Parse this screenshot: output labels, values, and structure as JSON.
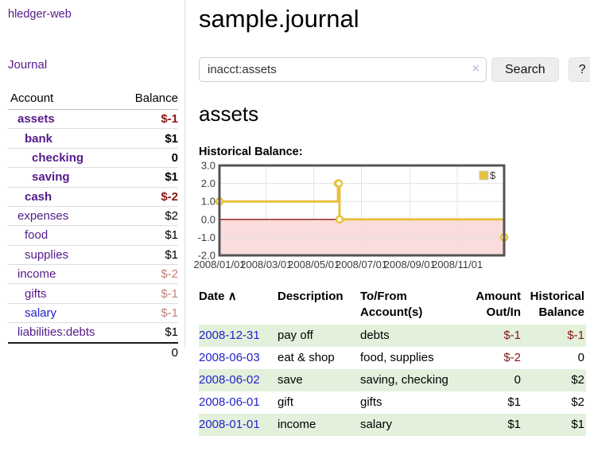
{
  "app": {
    "brand": "hledger-web",
    "journal_link": "Journal"
  },
  "sidebar": {
    "header": {
      "account": "Account",
      "balance": "Balance"
    },
    "accounts": [
      {
        "name": "assets",
        "indent": 1,
        "bold": true,
        "link_color": "purple",
        "balance": "$-1",
        "balance_color": "neg-dark"
      },
      {
        "name": "bank",
        "indent": 2,
        "bold": true,
        "link_color": "purple",
        "balance": "$1",
        "balance_color": "black"
      },
      {
        "name": "checking",
        "indent": 3,
        "bold": true,
        "link_color": "purple",
        "balance": "0",
        "balance_color": "black"
      },
      {
        "name": "saving",
        "indent": 3,
        "bold": true,
        "link_color": "purple",
        "balance": "$1",
        "balance_color": "black"
      },
      {
        "name": "cash",
        "indent": 2,
        "bold": true,
        "link_color": "purple",
        "balance": "$-2",
        "balance_color": "neg-dark"
      },
      {
        "name": "expenses",
        "indent": 1,
        "bold": false,
        "link_color": "purple",
        "balance": "$2",
        "balance_color": "black"
      },
      {
        "name": "food",
        "indent": 2,
        "bold": false,
        "link_color": "purple",
        "balance": "$1",
        "balance_color": "black"
      },
      {
        "name": "supplies",
        "indent": 2,
        "bold": false,
        "link_color": "purple",
        "balance": "$1",
        "balance_color": "black"
      },
      {
        "name": "income",
        "indent": 1,
        "bold": false,
        "link_color": "purple",
        "balance": "$-2",
        "balance_color": "neg-rose"
      },
      {
        "name": "gifts",
        "indent": 2,
        "bold": false,
        "link_color": "purple",
        "balance": "$-1",
        "balance_color": "neg-rose"
      },
      {
        "name": "salary",
        "indent": 2,
        "bold": false,
        "link_color": "blue",
        "balance": "$-1",
        "balance_color": "neg-rose"
      },
      {
        "name": "liabilities:debts",
        "indent": 1,
        "bold": false,
        "link_color": "purple",
        "balance": "$1",
        "balance_color": "black"
      }
    ],
    "total": "0"
  },
  "header": {
    "title": "sample.journal"
  },
  "search": {
    "value": "inacct:assets",
    "clear_icon": "×",
    "button_label": "Search",
    "help_label": "?"
  },
  "account_page": {
    "heading": "assets",
    "chart_title": "Historical Balance:"
  },
  "chart_data": {
    "type": "line",
    "style": "step",
    "title": "Historical Balance:",
    "series": [
      {
        "name": "$",
        "color": "#e8c13d",
        "points": [
          [
            "2008-01-01",
            1
          ],
          [
            "2008-06-01",
            2
          ],
          [
            "2008-06-02",
            2
          ],
          [
            "2008-06-03",
            0
          ],
          [
            "2008-12-31",
            -1
          ]
        ]
      }
    ],
    "xlim": [
      "2008-01-01",
      "2008-12-31"
    ],
    "ylim": [
      -2,
      3
    ],
    "x_ticks": [
      "2008/01/01",
      "2008/03/01",
      "2008/05/01",
      "2008/07/01",
      "2008/09/01",
      "2008/11/01"
    ],
    "y_ticks": [
      "3.0",
      "2.0",
      "1.0",
      "0.0",
      "-1.0",
      "-2.0"
    ],
    "grid": true,
    "legend": {
      "position": "top-right",
      "label": "$"
    },
    "colors": {
      "negative_region": "#fbdcdc",
      "zero_line": "#8f1414",
      "gridline": "#e3e3e3",
      "border": "#545454",
      "tick_text": "#3c3c3c"
    }
  },
  "register": {
    "headers": {
      "date": "Date",
      "sort_icon": "∧",
      "description": "Description",
      "accounts": "To/From Account(s)",
      "amount": "Amount Out/In",
      "balance": "Historical Balance"
    },
    "rows": [
      {
        "date": "2008-12-31",
        "description": "pay off",
        "accounts": "debts",
        "amount": "$-1",
        "amount_neg": true,
        "balance": "$-1",
        "balance_neg": true,
        "shaded": true
      },
      {
        "date": "2008-06-03",
        "description": "eat & shop",
        "accounts": "food, supplies",
        "amount": "$-2",
        "amount_neg": true,
        "balance": "0",
        "balance_neg": false,
        "shaded": false
      },
      {
        "date": "2008-06-02",
        "description": "save",
        "accounts": "saving, checking",
        "amount": "0",
        "amount_neg": false,
        "balance": "$2",
        "balance_neg": false,
        "shaded": true
      },
      {
        "date": "2008-06-01",
        "description": "gift",
        "accounts": "gifts",
        "amount": "$1",
        "amount_neg": false,
        "balance": "$2",
        "balance_neg": false,
        "shaded": false
      },
      {
        "date": "2008-01-01",
        "description": "income",
        "accounts": "salary",
        "amount": "$1",
        "amount_neg": false,
        "balance": "$1",
        "balance_neg": false,
        "shaded": true
      }
    ]
  }
}
